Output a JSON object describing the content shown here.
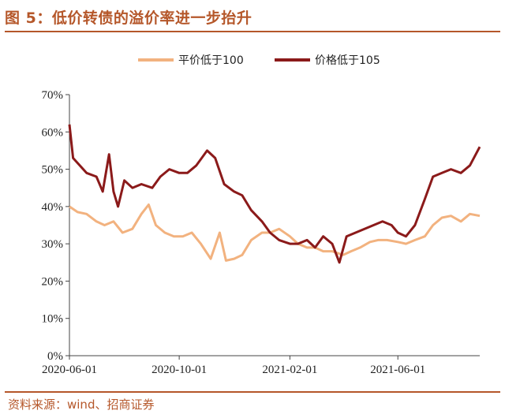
{
  "header": {
    "title": "图 5：低价转债的溢价率进一步抬升"
  },
  "footer": {
    "source": "资料来源：wind、招商证券"
  },
  "colors": {
    "accent": "#b5572a",
    "series_light": "#f2b27f",
    "series_dark": "#8b1a1a"
  },
  "chart_data": {
    "type": "line",
    "title": "",
    "xlabel": "",
    "ylabel": "",
    "x_ticks": [
      "2020-06-01",
      "2020-10-01",
      "2021-02-01",
      "2021-06-01"
    ],
    "y_ticks": [
      "0%",
      "10%",
      "20%",
      "30%",
      "40%",
      "50%",
      "60%",
      "70%"
    ],
    "ylim": [
      0,
      70
    ],
    "x_range": [
      "2020-06-01",
      "2021-08-31"
    ],
    "legend_position": "top",
    "grid": false,
    "series": [
      {
        "name": "平价低于100",
        "color": "#f2b27f",
        "points": [
          [
            "2020-06-01",
            40
          ],
          [
            "2020-06-10",
            38.5
          ],
          [
            "2020-06-20",
            38
          ],
          [
            "2020-07-01",
            36
          ],
          [
            "2020-07-10",
            35
          ],
          [
            "2020-07-20",
            36
          ],
          [
            "2020-07-30",
            33
          ],
          [
            "2020-08-10",
            34
          ],
          [
            "2020-08-20",
            38
          ],
          [
            "2020-08-28",
            40.5
          ],
          [
            "2020-09-05",
            35
          ],
          [
            "2020-09-15",
            33
          ],
          [
            "2020-09-25",
            32
          ],
          [
            "2020-10-05",
            32
          ],
          [
            "2020-10-15",
            33
          ],
          [
            "2020-10-25",
            30
          ],
          [
            "2020-11-05",
            26
          ],
          [
            "2020-11-15",
            33
          ],
          [
            "2020-11-22",
            25.5
          ],
          [
            "2020-12-01",
            26
          ],
          [
            "2020-12-10",
            27
          ],
          [
            "2020-12-20",
            31
          ],
          [
            "2021-01-01",
            33
          ],
          [
            "2021-01-10",
            33
          ],
          [
            "2021-01-20",
            34
          ],
          [
            "2021-02-01",
            32
          ],
          [
            "2021-02-10",
            30
          ],
          [
            "2021-02-20",
            29
          ],
          [
            "2021-03-01",
            29
          ],
          [
            "2021-03-10",
            28
          ],
          [
            "2021-03-20",
            28
          ],
          [
            "2021-04-01",
            27
          ],
          [
            "2021-04-10",
            28
          ],
          [
            "2021-04-20",
            29
          ],
          [
            "2021-05-01",
            30.5
          ],
          [
            "2021-05-10",
            31
          ],
          [
            "2021-05-20",
            31
          ],
          [
            "2021-06-01",
            30.5
          ],
          [
            "2021-06-10",
            30
          ],
          [
            "2021-06-20",
            31
          ],
          [
            "2021-07-01",
            32
          ],
          [
            "2021-07-10",
            35
          ],
          [
            "2021-07-20",
            37
          ],
          [
            "2021-07-30",
            37.5
          ],
          [
            "2021-08-10",
            36
          ],
          [
            "2021-08-20",
            38
          ],
          [
            "2021-08-31",
            37.5
          ]
        ]
      },
      {
        "name": "价格低于105",
        "color": "#8b1a1a",
        "points": [
          [
            "2020-06-01",
            62
          ],
          [
            "2020-06-05",
            53
          ],
          [
            "2020-06-20",
            49
          ],
          [
            "2020-07-01",
            48
          ],
          [
            "2020-07-08",
            44
          ],
          [
            "2020-07-15",
            54
          ],
          [
            "2020-07-20",
            44
          ],
          [
            "2020-07-25",
            40
          ],
          [
            "2020-08-01",
            47
          ],
          [
            "2020-08-10",
            45
          ],
          [
            "2020-08-20",
            46
          ],
          [
            "2020-09-01",
            45
          ],
          [
            "2020-09-10",
            48
          ],
          [
            "2020-09-20",
            50
          ],
          [
            "2020-10-01",
            49
          ],
          [
            "2020-10-10",
            49
          ],
          [
            "2020-10-20",
            51
          ],
          [
            "2020-11-01",
            55
          ],
          [
            "2020-11-10",
            53
          ],
          [
            "2020-11-20",
            46
          ],
          [
            "2020-12-01",
            44
          ],
          [
            "2020-12-10",
            43
          ],
          [
            "2020-12-20",
            39
          ],
          [
            "2021-01-01",
            36
          ],
          [
            "2021-01-10",
            33
          ],
          [
            "2021-01-20",
            31
          ],
          [
            "2021-02-01",
            30
          ],
          [
            "2021-02-10",
            30
          ],
          [
            "2021-02-20",
            31
          ],
          [
            "2021-03-01",
            29
          ],
          [
            "2021-03-10",
            32
          ],
          [
            "2021-03-20",
            30
          ],
          [
            "2021-03-28",
            25
          ],
          [
            "2021-04-05",
            32
          ],
          [
            "2021-04-15",
            33
          ],
          [
            "2021-04-25",
            34
          ],
          [
            "2021-05-05",
            35
          ],
          [
            "2021-05-15",
            36
          ],
          [
            "2021-05-25",
            35
          ],
          [
            "2021-06-01",
            33
          ],
          [
            "2021-06-10",
            32
          ],
          [
            "2021-06-20",
            35
          ],
          [
            "2021-07-01",
            42
          ],
          [
            "2021-07-10",
            48
          ],
          [
            "2021-07-20",
            49
          ],
          [
            "2021-07-30",
            50
          ],
          [
            "2021-08-10",
            49
          ],
          [
            "2021-08-20",
            51
          ],
          [
            "2021-08-31",
            56
          ]
        ]
      }
    ]
  }
}
